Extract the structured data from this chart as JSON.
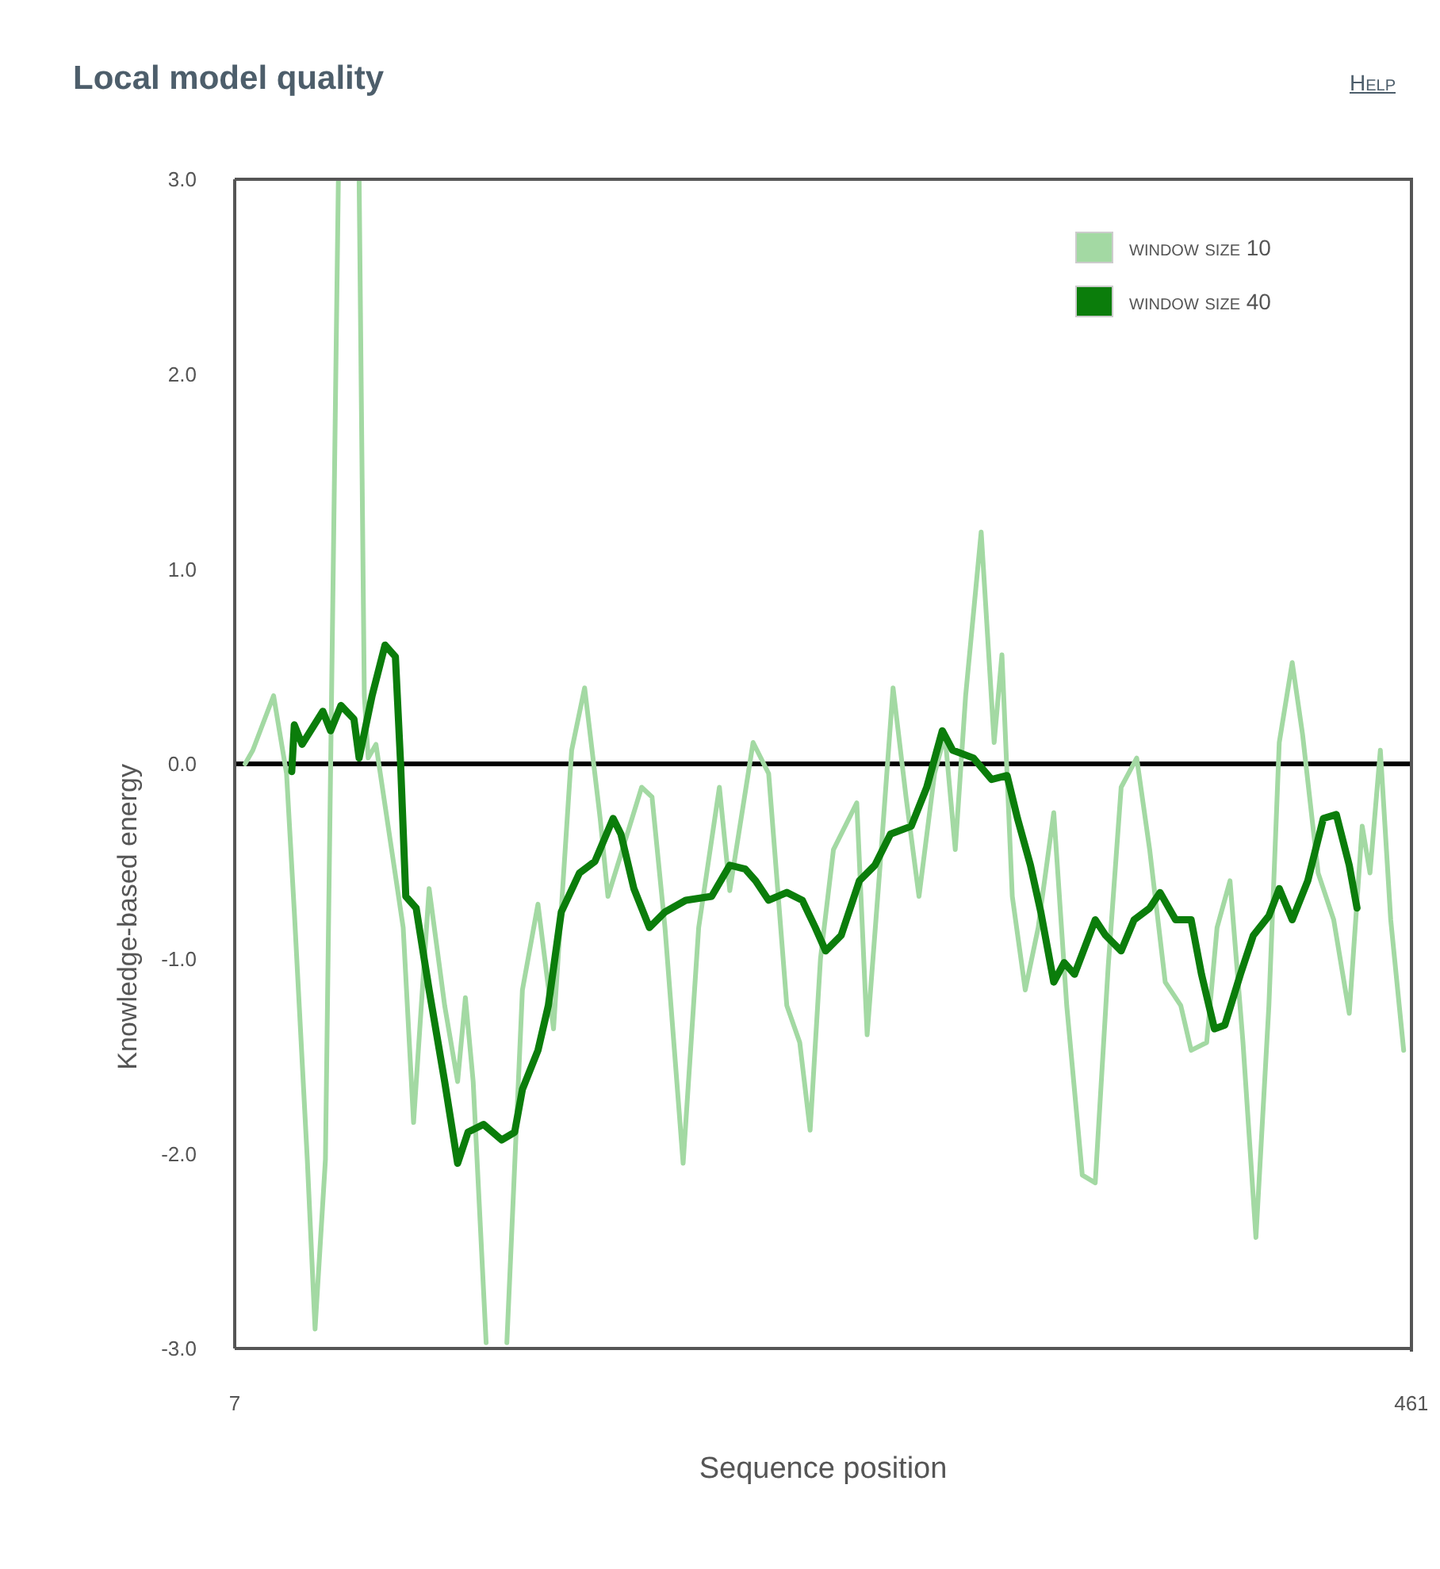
{
  "chart_data": {
    "type": "line",
    "title": "Local model quality",
    "xlabel": "Sequence position",
    "ylabel": "Knowledge-based energy",
    "annotations": [
      "Help"
    ],
    "xlim": [
      7,
      461
    ],
    "xticks": [
      7,
      461
    ],
    "ylim": [
      -3,
      3
    ],
    "yticks": [
      {
        "value": -3,
        "label": "-3.0"
      },
      {
        "value": -2,
        "label": "-2.0"
      },
      {
        "value": -1,
        "label": "-1.0"
      },
      {
        "value": 0,
        "label": "0.0"
      },
      {
        "value": 1,
        "label": "1.0"
      },
      {
        "value": 2,
        "label": "2.0"
      },
      {
        "value": 3,
        "label": "3.0"
      }
    ],
    "legend": "top right",
    "marker": "none",
    "line_style": "solid",
    "ref_lines": [
      {
        "axis": "y",
        "value": 0,
        "color": "#000000"
      }
    ],
    "series": [
      {
        "name": "window size 10",
        "color": "#a3d9a3",
        "x": [
          11,
          14,
          22,
          27,
          30,
          35,
          38,
          42,
          47,
          51,
          55,
          57,
          58.5,
          61.5,
          72,
          76,
          82,
          88,
          93,
          96,
          99,
          104,
          108,
          112,
          118,
          124,
          130,
          137,
          142,
          148,
          151,
          164,
          168,
          173,
          180,
          186,
          194,
          198,
          207,
          213,
          220,
          225,
          229,
          233,
          238,
          247,
          251,
          256,
          261,
          266,
          271,
          277,
          281,
          285,
          289,
          295,
          300,
          303,
          307,
          312,
          317,
          323,
          328,
          334,
          339,
          344,
          349,
          355,
          360,
          366,
          372,
          376,
          382,
          386,
          391,
          396,
          401,
          406,
          410,
          415,
          419,
          425,
          431,
          437,
          442,
          445,
          449,
          453,
          458
        ],
        "values": [
          0.0,
          0.07,
          0.35,
          -0.05,
          -0.76,
          -2.03,
          -2.9,
          -2.03,
          3.0,
          null,
          3.0,
          0.35,
          0.03,
          0.1,
          -0.84,
          -1.84,
          -0.64,
          -1.24,
          -1.63,
          -1.2,
          -1.63,
          -2.97,
          null,
          -2.97,
          -1.16,
          -0.72,
          -1.36,
          0.07,
          0.39,
          -0.28,
          -0.68,
          -0.12,
          -0.17,
          -0.84,
          -2.05,
          -0.84,
          -0.12,
          -0.65,
          0.11,
          -0.05,
          -1.24,
          -1.43,
          -1.88,
          -1.0,
          -0.44,
          -0.2,
          -1.39,
          -0.52,
          0.39,
          -0.17,
          -0.68,
          -0.05,
          0.15,
          -0.44,
          0.35,
          1.19,
          0.11,
          0.56,
          -0.68,
          -1.16,
          -0.84,
          -0.25,
          -1.24,
          -2.11,
          -2.15,
          -1.04,
          -0.12,
          0.03,
          -0.44,
          -1.12,
          -1.24,
          -1.47,
          -1.43,
          -0.84,
          -0.6,
          -1.43,
          -2.43,
          -1.24,
          0.11,
          0.52,
          0.15,
          -0.56,
          -0.8,
          -1.28,
          -0.32,
          -0.56,
          0.07,
          -0.8,
          -1.47
        ]
      },
      {
        "name": "window size 40",
        "color": "#0b7d0b",
        "x": [
          29,
          30,
          33,
          41,
          44,
          48,
          53,
          55,
          60,
          65,
          69,
          71,
          73,
          77,
          82,
          88,
          93,
          97,
          103,
          110,
          115,
          118,
          124,
          128,
          133,
          140,
          146,
          153,
          156,
          161,
          167,
          173,
          181,
          191,
          198,
          204,
          208,
          213,
          220,
          226,
          231,
          235,
          241,
          248,
          254,
          260,
          268,
          274,
          280,
          284,
          292,
          299,
          305,
          309,
          314,
          318,
          323,
          327,
          331,
          339,
          343,
          349,
          354,
          360,
          364,
          370,
          376,
          380,
          385,
          389,
          395,
          400,
          406,
          410,
          415,
          421,
          427,
          432,
          437,
          440
        ],
        "values": [
          -0.04,
          0.2,
          0.1,
          0.27,
          0.17,
          0.3,
          0.23,
          0.03,
          0.35,
          0.61,
          0.55,
          0.0,
          -0.68,
          -0.74,
          -1.16,
          -1.63,
          -2.05,
          -1.89,
          -1.85,
          -1.93,
          -1.89,
          -1.67,
          -1.47,
          -1.24,
          -0.76,
          -0.56,
          -0.5,
          -0.28,
          -0.36,
          -0.64,
          -0.84,
          -0.76,
          -0.7,
          -0.68,
          -0.52,
          -0.54,
          -0.6,
          -0.7,
          -0.66,
          -0.7,
          -0.84,
          -0.96,
          -0.88,
          -0.6,
          -0.52,
          -0.36,
          -0.32,
          -0.12,
          0.17,
          0.07,
          0.03,
          -0.08,
          -0.06,
          -0.28,
          -0.52,
          -0.76,
          -1.12,
          -1.02,
          -1.08,
          -0.8,
          -0.88,
          -0.96,
          -0.8,
          -0.74,
          -0.66,
          -0.8,
          -0.8,
          -1.08,
          -1.36,
          -1.34,
          -1.08,
          -0.88,
          -0.78,
          -0.64,
          -0.8,
          -0.6,
          -0.28,
          -0.26,
          -0.52,
          -0.74
        ]
      }
    ]
  }
}
